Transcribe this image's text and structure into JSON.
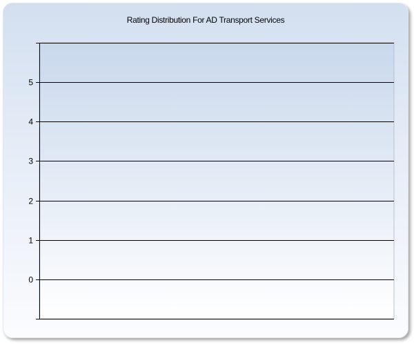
{
  "chart_data": {
    "type": "bar",
    "title": "Rating Distribution For AD Transport Services",
    "xlabel": "",
    "ylabel": "",
    "categories": [],
    "values": [],
    "ylim": [
      -1,
      6
    ],
    "yticks": [
      0,
      1,
      2,
      3,
      4,
      5
    ],
    "ytick_labels": [
      "0",
      "1",
      "2",
      "3",
      "4",
      "5"
    ],
    "grid": true,
    "colors": {
      "background_top": "#d3dff0",
      "background_bottom": "#ffffff",
      "plot_top": "#c9d8ec",
      "gridline": "#000000"
    }
  }
}
